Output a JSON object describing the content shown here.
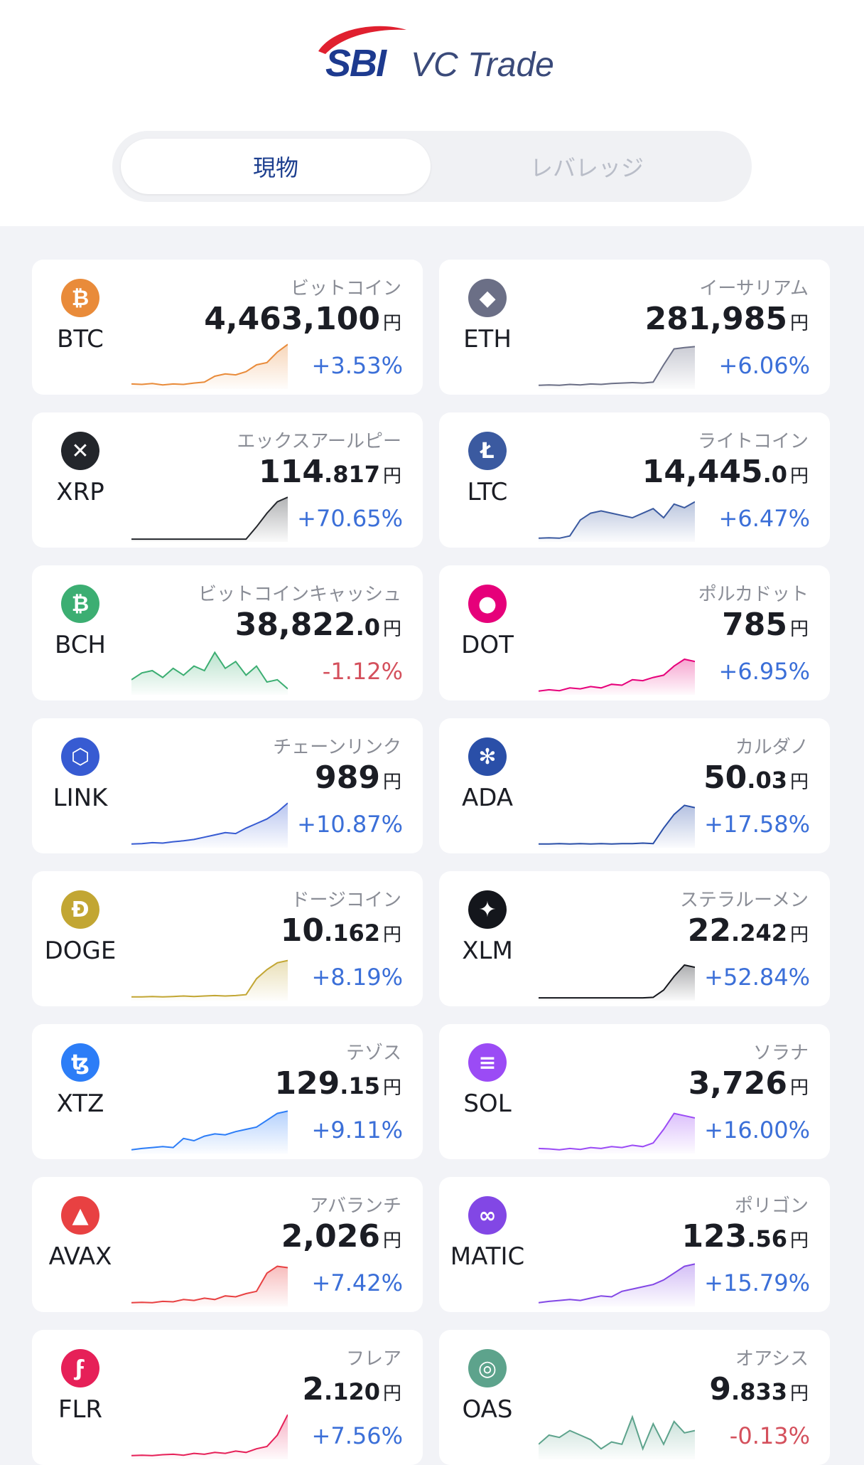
{
  "brand": {
    "logo": "SBI",
    "name": "VC Trade",
    "arc_color": "#e0202f"
  },
  "tabs": [
    {
      "label": "現物",
      "active": true
    },
    {
      "label": "レバレッジ",
      "active": false
    }
  ],
  "coins": [
    {
      "symbol": "BTC",
      "name": "ビットコイン",
      "price_main": "4,463,100",
      "price_dec": "",
      "currency": "円",
      "change": "+3.53%",
      "trend": "up",
      "icon": "bitcoin-icon",
      "color": "#e98b3a",
      "glyph": "₿",
      "spark": [
        0.08,
        0.07,
        0.09,
        0.06,
        0.08,
        0.07,
        0.1,
        0.12,
        0.25,
        0.3,
        0.28,
        0.35,
        0.5,
        0.55,
        0.78,
        0.95
      ]
    },
    {
      "symbol": "ETH",
      "name": "イーサリアム",
      "price_main": "281,985",
      "price_dec": "",
      "currency": "円",
      "change": "+6.06%",
      "trend": "up",
      "icon": "ethereum-icon",
      "color": "#6b6f86",
      "glyph": "◆",
      "spark": [
        0.05,
        0.06,
        0.05,
        0.07,
        0.06,
        0.08,
        0.07,
        0.09,
        0.1,
        0.11,
        0.1,
        0.12,
        0.5,
        0.85,
        0.88,
        0.9
      ]
    },
    {
      "symbol": "XRP",
      "name": "エックスアールピー",
      "price_main": "114",
      "price_dec": ".817",
      "currency": "円",
      "change": "+70.65%",
      "trend": "up",
      "icon": "xrp-icon",
      "color": "#23262b",
      "glyph": "✕",
      "spark": [
        0.03,
        0.03,
        0.03,
        0.03,
        0.03,
        0.03,
        0.03,
        0.03,
        0.03,
        0.03,
        0.03,
        0.03,
        0.3,
        0.6,
        0.85,
        0.95
      ]
    },
    {
      "symbol": "LTC",
      "name": "ライトコイン",
      "price_main": "14,445",
      "price_dec": ".0",
      "currency": "円",
      "change": "+6.47%",
      "trend": "up",
      "icon": "litecoin-icon",
      "color": "#3b5aa0",
      "glyph": "Ł",
      "spark": [
        0.05,
        0.06,
        0.05,
        0.1,
        0.45,
        0.6,
        0.65,
        0.6,
        0.55,
        0.5,
        0.6,
        0.7,
        0.5,
        0.8,
        0.72,
        0.85
      ]
    },
    {
      "symbol": "BCH",
      "name": "ビットコインキャッシュ",
      "price_main": "38,822",
      "price_dec": ".0",
      "currency": "円",
      "change": "-1.12%",
      "trend": "down",
      "icon": "bitcoin-cash-icon",
      "color": "#3cae72",
      "glyph": "₿",
      "spark": [
        0.3,
        0.45,
        0.5,
        0.35,
        0.55,
        0.4,
        0.6,
        0.5,
        0.9,
        0.55,
        0.7,
        0.4,
        0.6,
        0.25,
        0.3,
        0.1
      ]
    },
    {
      "symbol": "DOT",
      "name": "ポルカドット",
      "price_main": "785",
      "price_dec": "",
      "currency": "円",
      "change": "+6.95%",
      "trend": "up",
      "icon": "polkadot-icon",
      "color": "#e6007a",
      "glyph": "●",
      "spark": [
        0.05,
        0.08,
        0.06,
        0.12,
        0.1,
        0.15,
        0.12,
        0.2,
        0.18,
        0.3,
        0.28,
        0.35,
        0.4,
        0.6,
        0.75,
        0.7
      ]
    },
    {
      "symbol": "LINK",
      "name": "チェーンリンク",
      "price_main": "989",
      "price_dec": "",
      "currency": "円",
      "change": "+10.87%",
      "trend": "up",
      "icon": "chainlink-icon",
      "color": "#375bd2",
      "glyph": "⬡",
      "spark": [
        0.05,
        0.06,
        0.08,
        0.07,
        0.1,
        0.12,
        0.15,
        0.2,
        0.25,
        0.3,
        0.28,
        0.4,
        0.5,
        0.6,
        0.75,
        0.95
      ]
    },
    {
      "symbol": "ADA",
      "name": "カルダノ",
      "price_main": "50",
      "price_dec": ".03",
      "currency": "円",
      "change": "+17.58%",
      "trend": "up",
      "icon": "cardano-icon",
      "color": "#2a4fa8",
      "glyph": "✻",
      "spark": [
        0.05,
        0.05,
        0.06,
        0.05,
        0.06,
        0.05,
        0.06,
        0.05,
        0.06,
        0.06,
        0.07,
        0.06,
        0.4,
        0.7,
        0.9,
        0.85
      ]
    },
    {
      "symbol": "DOGE",
      "name": "ドージコイン",
      "price_main": "10",
      "price_dec": ".162",
      "currency": "円",
      "change": "+8.19%",
      "trend": "up",
      "icon": "dogecoin-icon",
      "color": "#c2a633",
      "glyph": "Ð",
      "spark": [
        0.05,
        0.05,
        0.06,
        0.05,
        0.06,
        0.07,
        0.06,
        0.07,
        0.08,
        0.07,
        0.08,
        0.1,
        0.45,
        0.65,
        0.8,
        0.85
      ]
    },
    {
      "symbol": "XLM",
      "name": "ステラルーメン",
      "price_main": "22",
      "price_dec": ".242",
      "currency": "円",
      "change": "+52.84%",
      "trend": "up",
      "icon": "stellar-icon",
      "color": "#14161c",
      "glyph": "✦",
      "spark": [
        0.03,
        0.03,
        0.03,
        0.03,
        0.03,
        0.03,
        0.03,
        0.03,
        0.03,
        0.03,
        0.03,
        0.04,
        0.2,
        0.5,
        0.75,
        0.7
      ]
    },
    {
      "symbol": "XTZ",
      "name": "テゾス",
      "price_main": "129",
      "price_dec": ".15",
      "currency": "円",
      "change": "+9.11%",
      "trend": "up",
      "icon": "tezos-icon",
      "color": "#2c7df7",
      "glyph": "ꜩ",
      "spark": [
        0.05,
        0.08,
        0.1,
        0.12,
        0.1,
        0.3,
        0.25,
        0.35,
        0.4,
        0.38,
        0.45,
        0.5,
        0.55,
        0.7,
        0.85,
        0.9
      ]
    },
    {
      "symbol": "SOL",
      "name": "ソラナ",
      "price_main": "3,726",
      "price_dec": "",
      "currency": "円",
      "change": "+16.00%",
      "trend": "up",
      "icon": "solana-icon",
      "color": "#9b4bf5",
      "glyph": "≡",
      "spark": [
        0.08,
        0.07,
        0.05,
        0.08,
        0.06,
        0.1,
        0.08,
        0.12,
        0.1,
        0.15,
        0.12,
        0.2,
        0.5,
        0.85,
        0.8,
        0.75
      ]
    },
    {
      "symbol": "AVAX",
      "name": "アバランチ",
      "price_main": "2,026",
      "price_dec": "",
      "currency": "円",
      "change": "+7.42%",
      "trend": "up",
      "icon": "avalanche-icon",
      "color": "#e84142",
      "glyph": "▲",
      "spark": [
        0.05,
        0.06,
        0.05,
        0.08,
        0.07,
        0.12,
        0.1,
        0.15,
        0.12,
        0.2,
        0.18,
        0.25,
        0.3,
        0.7,
        0.85,
        0.82
      ]
    },
    {
      "symbol": "MATIC",
      "name": "ポリゴン",
      "price_main": "123",
      "price_dec": ".56",
      "currency": "円",
      "change": "+15.79%",
      "trend": "up",
      "icon": "polygon-icon",
      "color": "#8247e5",
      "glyph": "∞",
      "spark": [
        0.05,
        0.08,
        0.1,
        0.12,
        0.1,
        0.15,
        0.2,
        0.18,
        0.3,
        0.35,
        0.4,
        0.45,
        0.55,
        0.7,
        0.85,
        0.9
      ]
    },
    {
      "symbol": "FLR",
      "name": "フレア",
      "price_main": "2",
      "price_dec": ".120",
      "currency": "円",
      "change": "+7.56%",
      "trend": "up",
      "icon": "flare-icon",
      "color": "#e62058",
      "glyph": "ϝ",
      "spark": [
        0.05,
        0.06,
        0.05,
        0.07,
        0.08,
        0.06,
        0.1,
        0.08,
        0.12,
        0.1,
        0.15,
        0.12,
        0.2,
        0.25,
        0.5,
        0.95
      ]
    },
    {
      "symbol": "OAS",
      "name": "オアシス",
      "price_main": "9",
      "price_dec": ".833",
      "currency": "円",
      "change": "-0.13%",
      "trend": "down",
      "icon": "oasys-icon",
      "color": "#5da38c",
      "glyph": "◎",
      "spark": [
        0.3,
        0.5,
        0.45,
        0.6,
        0.5,
        0.4,
        0.2,
        0.35,
        0.3,
        0.9,
        0.2,
        0.75,
        0.3,
        0.8,
        0.55,
        0.6
      ]
    }
  ]
}
